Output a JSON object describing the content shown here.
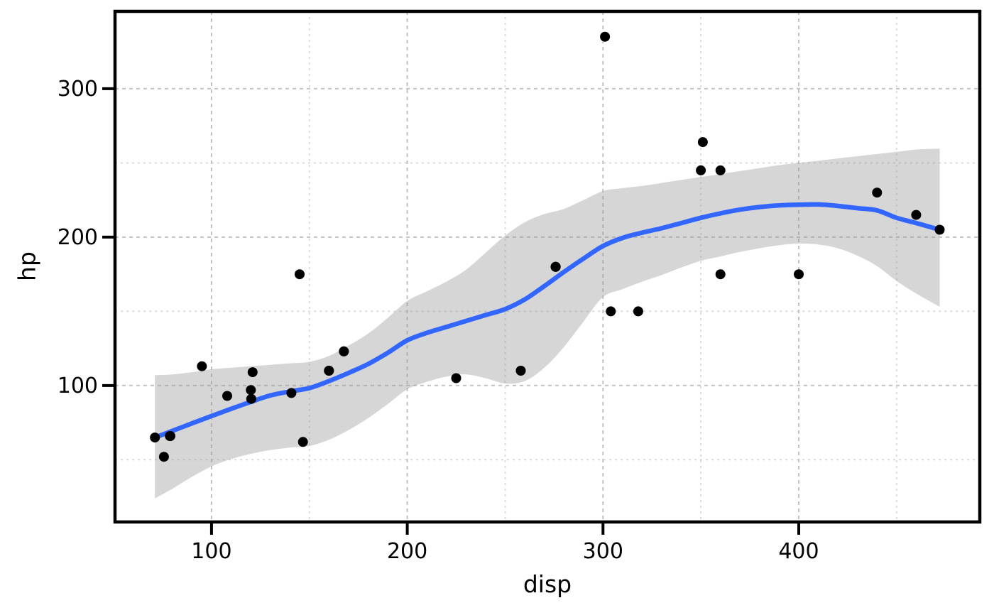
{
  "chart_data": {
    "type": "scatter",
    "title": "",
    "xlabel": "disp",
    "ylabel": "hp",
    "x_domain": [
      50.7,
      492.5
    ],
    "y_domain": [
      8.1,
      352.1
    ],
    "x_ticks": {
      "values": [
        100,
        200,
        300,
        400
      ],
      "labels": [
        "100",
        "200",
        "300",
        "400"
      ]
    },
    "y_ticks": {
      "values": [
        100,
        200,
        300
      ],
      "labels": [
        "100",
        "200",
        "300"
      ]
    },
    "x_minor": [
      150,
      250,
      350,
      450
    ],
    "y_minor": [
      50,
      150,
      250
    ],
    "grid": "dashed",
    "legend": "none",
    "points_xy": [
      [
        160,
        110
      ],
      [
        160,
        110
      ],
      [
        108,
        93
      ],
      [
        258,
        110
      ],
      [
        360,
        175
      ],
      [
        225,
        105
      ],
      [
        360,
        245
      ],
      [
        146.7,
        62
      ],
      [
        140.8,
        95
      ],
      [
        167.6,
        123
      ],
      [
        167.6,
        123
      ],
      [
        275.8,
        180
      ],
      [
        275.8,
        180
      ],
      [
        275.8,
        180
      ],
      [
        472,
        205
      ],
      [
        460,
        215
      ],
      [
        440,
        230
      ],
      [
        78.7,
        66
      ],
      [
        75.7,
        52
      ],
      [
        71.1,
        65
      ],
      [
        120.1,
        97
      ],
      [
        318,
        150
      ],
      [
        304,
        150
      ],
      [
        350,
        245
      ],
      [
        400,
        175
      ],
      [
        79,
        66
      ],
      [
        120.3,
        91
      ],
      [
        95.1,
        113
      ],
      [
        351,
        264
      ],
      [
        145,
        175
      ],
      [
        301,
        335
      ],
      [
        121,
        109
      ]
    ],
    "smooth_line": {
      "name": "loess-fit",
      "x": [
        71.1,
        80,
        90,
        100,
        110,
        120,
        130,
        140,
        150,
        160,
        170,
        180,
        190,
        200,
        210,
        220,
        230,
        240,
        250,
        260,
        270,
        280,
        290,
        300,
        310,
        320,
        330,
        340,
        350,
        360,
        370,
        380,
        390,
        400,
        410,
        420,
        430,
        440,
        450,
        460,
        472
      ],
      "y": [
        65,
        69.5,
        74.5,
        79.5,
        84.3,
        89,
        93.3,
        96,
        98.3,
        103,
        108.5,
        114.5,
        122,
        130.5,
        135.5,
        139.5,
        143.5,
        147.5,
        151.5,
        158,
        167,
        176.5,
        185.5,
        194,
        199.5,
        203,
        206,
        209.5,
        213,
        216,
        218.5,
        220.3,
        221.4,
        221.8,
        222,
        221,
        219.5,
        218,
        213,
        209.5,
        205
      ]
    },
    "ribbon": {
      "name": "confidence-band",
      "x": [
        71.1,
        80,
        90,
        100,
        110,
        120,
        130,
        140,
        150,
        160,
        170,
        180,
        190,
        200,
        210,
        220,
        230,
        240,
        250,
        260,
        270,
        280,
        290,
        300,
        310,
        320,
        330,
        340,
        350,
        360,
        370,
        380,
        390,
        400,
        410,
        420,
        430,
        440,
        450,
        460,
        472
      ],
      "upper": [
        107,
        107.5,
        109,
        111,
        112,
        113,
        114,
        115,
        116,
        120,
        127,
        135,
        145.5,
        157,
        163.5,
        170,
        178,
        189.5,
        201,
        210,
        215.5,
        219,
        225,
        231,
        233,
        234.5,
        236.5,
        238.5,
        240.5,
        242.5,
        244.5,
        246.5,
        248.5,
        250,
        251.5,
        253,
        254.5,
        256,
        257.5,
        259,
        259.6
      ],
      "lower": [
        24,
        30.5,
        38.5,
        45.5,
        50.5,
        54,
        56.5,
        58.2,
        59.3,
        63.5,
        70,
        78,
        87.5,
        97.5,
        102.5,
        106,
        107.5,
        105,
        101.4,
        103,
        112,
        126,
        143,
        159.6,
        165,
        170,
        174.5,
        179.5,
        184,
        187,
        190,
        192.5,
        194.5,
        195.7,
        195,
        192.5,
        187.5,
        180.5,
        170.5,
        162,
        153
      ]
    },
    "colors": {
      "point": "#000000",
      "line": "#3366FF",
      "ribbon_fill": "rgba(153,153,153,0.40)",
      "grid_major": "#C2C2C2",
      "grid_minor": "#D4D4D4",
      "panel_border": "#000000",
      "tick_mark": "#000000",
      "text": "#000000",
      "background": "#FFFFFF"
    },
    "point_radius": 7,
    "line_width": 6.5
  }
}
